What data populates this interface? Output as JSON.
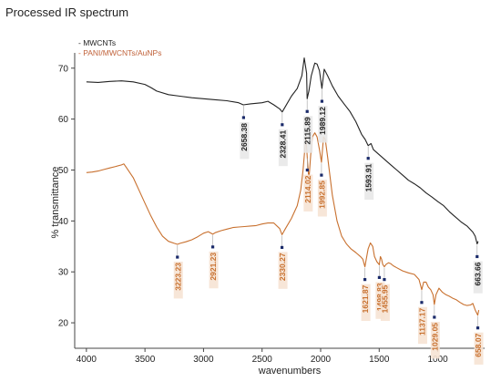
{
  "chart_data": {
    "type": "line",
    "title": "Processed IR spectrum",
    "xlabel": "wavenumbers",
    "ylabel": "% transmittance",
    "xlim": [
      4100,
      600
    ],
    "ylim": [
      15,
      73
    ],
    "x_reversed": true,
    "xticks": [
      4000,
      3500,
      3000,
      2500,
      2000,
      1500,
      1000
    ],
    "yticks": [
      20,
      30,
      40,
      50,
      60,
      70
    ],
    "legend_position": "top-left",
    "grid": false,
    "series": [
      {
        "name": "- MWCNTs",
        "color": "#222222",
        "points": [
          [
            4000,
            67.3
          ],
          [
            3900,
            67.2
          ],
          [
            3800,
            67.4
          ],
          [
            3700,
            67.5
          ],
          [
            3600,
            67.3
          ],
          [
            3500,
            66.8
          ],
          [
            3450,
            66.2
          ],
          [
            3400,
            65.5
          ],
          [
            3300,
            64.8
          ],
          [
            3200,
            64.5
          ],
          [
            3100,
            64.2
          ],
          [
            3000,
            64.0
          ],
          [
            2900,
            63.8
          ],
          [
            2800,
            63.6
          ],
          [
            2700,
            63.2
          ],
          [
            2660,
            62.8
          ],
          [
            2600,
            63.0
          ],
          [
            2500,
            63.2
          ],
          [
            2450,
            63.5
          ],
          [
            2400,
            62.8
          ],
          [
            2350,
            62.0
          ],
          [
            2328,
            61.4
          ],
          [
            2300,
            62.5
          ],
          [
            2250,
            64.5
          ],
          [
            2200,
            66.0
          ],
          [
            2160,
            68.5
          ],
          [
            2140,
            72.0
          ],
          [
            2120,
            69.0
          ],
          [
            2115,
            64.0
          ],
          [
            2100,
            65.5
          ],
          [
            2080,
            68.5
          ],
          [
            2050,
            71.0
          ],
          [
            2030,
            70.8
          ],
          [
            2010,
            69.5
          ],
          [
            1989,
            66.0
          ],
          [
            1970,
            69.8
          ],
          [
            1940,
            68.5
          ],
          [
            1900,
            66.5
          ],
          [
            1850,
            64.5
          ],
          [
            1800,
            63.0
          ],
          [
            1750,
            61.5
          ],
          [
            1700,
            59.5
          ],
          [
            1650,
            57.0
          ],
          [
            1620,
            56.0
          ],
          [
            1594,
            54.8
          ],
          [
            1570,
            55.2
          ],
          [
            1550,
            54.0
          ],
          [
            1500,
            53.0
          ],
          [
            1450,
            52.0
          ],
          [
            1400,
            51.0
          ],
          [
            1350,
            50.0
          ],
          [
            1300,
            49.0
          ],
          [
            1250,
            48.0
          ],
          [
            1200,
            47.3
          ],
          [
            1150,
            46.5
          ],
          [
            1100,
            45.5
          ],
          [
            1050,
            44.7
          ],
          [
            1000,
            43.8
          ],
          [
            950,
            43.0
          ],
          [
            900,
            41.8
          ],
          [
            850,
            40.8
          ],
          [
            800,
            39.8
          ],
          [
            750,
            39.0
          ],
          [
            700,
            37.8
          ],
          [
            680,
            37.0
          ],
          [
            664,
            35.5
          ],
          [
            655,
            36.0
          ]
        ]
      },
      {
        "name": "- PANI/MWCNTs/AuNPs",
        "color": "#c8702e",
        "points": [
          [
            4000,
            49.5
          ],
          [
            3950,
            49.6
          ],
          [
            3900,
            49.8
          ],
          [
            3850,
            50.1
          ],
          [
            3800,
            50.4
          ],
          [
            3750,
            50.7
          ],
          [
            3700,
            51.0
          ],
          [
            3680,
            51.2
          ],
          [
            3650,
            50.2
          ],
          [
            3600,
            48.5
          ],
          [
            3550,
            46.0
          ],
          [
            3500,
            43.5
          ],
          [
            3450,
            41.0
          ],
          [
            3400,
            38.8
          ],
          [
            3350,
            37.0
          ],
          [
            3300,
            36.0
          ],
          [
            3250,
            35.6
          ],
          [
            3223,
            35.4
          ],
          [
            3200,
            35.6
          ],
          [
            3150,
            35.9
          ],
          [
            3100,
            36.3
          ],
          [
            3050,
            36.9
          ],
          [
            3000,
            37.6
          ],
          [
            2960,
            37.9
          ],
          [
            2921,
            37.4
          ],
          [
            2900,
            37.7
          ],
          [
            2850,
            38.1
          ],
          [
            2800,
            38.4
          ],
          [
            2750,
            38.7
          ],
          [
            2700,
            38.8
          ],
          [
            2650,
            38.9
          ],
          [
            2600,
            39.0
          ],
          [
            2550,
            39.1
          ],
          [
            2500,
            39.4
          ],
          [
            2450,
            39.6
          ],
          [
            2400,
            39.6
          ],
          [
            2350,
            38.5
          ],
          [
            2330,
            37.3
          ],
          [
            2300,
            38.5
          ],
          [
            2250,
            40.5
          ],
          [
            2200,
            43.0
          ],
          [
            2170,
            46.0
          ],
          [
            2150,
            50.0
          ],
          [
            2135,
            54.0
          ],
          [
            2125,
            56.5
          ],
          [
            2114,
            52.5
          ],
          [
            2100,
            48.0
          ],
          [
            2085,
            53.0
          ],
          [
            2070,
            56.5
          ],
          [
            2050,
            57.3
          ],
          [
            2030,
            56.5
          ],
          [
            2010,
            54.0
          ],
          [
            1993,
            51.5
          ],
          [
            1975,
            56.5
          ],
          [
            1960,
            56.0
          ],
          [
            1940,
            52.5
          ],
          [
            1900,
            45.0
          ],
          [
            1860,
            40.0
          ],
          [
            1820,
            37.0
          ],
          [
            1780,
            35.5
          ],
          [
            1740,
            34.5
          ],
          [
            1700,
            33.8
          ],
          [
            1660,
            33.0
          ],
          [
            1640,
            32.5
          ],
          [
            1622,
            31.0
          ],
          [
            1610,
            32.5
          ],
          [
            1595,
            34.5
          ],
          [
            1575,
            35.7
          ],
          [
            1555,
            35.0
          ],
          [
            1540,
            33.0
          ],
          [
            1520,
            32.0
          ],
          [
            1499,
            31.4
          ],
          [
            1490,
            33.0
          ],
          [
            1480,
            32.5
          ],
          [
            1470,
            31.5
          ],
          [
            1456,
            31.0
          ],
          [
            1440,
            31.5
          ],
          [
            1420,
            31.8
          ],
          [
            1400,
            31.6
          ],
          [
            1380,
            31.2
          ],
          [
            1350,
            30.8
          ],
          [
            1300,
            30.2
          ],
          [
            1250,
            29.8
          ],
          [
            1200,
            29.5
          ],
          [
            1160,
            28.5
          ],
          [
            1137,
            26.5
          ],
          [
            1120,
            28.0
          ],
          [
            1100,
            28.0
          ],
          [
            1080,
            27.0
          ],
          [
            1060,
            26.5
          ],
          [
            1040,
            25.5
          ],
          [
            1029,
            23.6
          ],
          [
            1015,
            25.5
          ],
          [
            990,
            26.8
          ],
          [
            960,
            26.0
          ],
          [
            930,
            25.5
          ],
          [
            900,
            25.2
          ],
          [
            870,
            24.8
          ],
          [
            840,
            24.5
          ],
          [
            810,
            24.0
          ],
          [
            780,
            23.6
          ],
          [
            750,
            23.4
          ],
          [
            720,
            23.5
          ],
          [
            700,
            23.8
          ],
          [
            680,
            22.5
          ],
          [
            658,
            21.5
          ],
          [
            650,
            22.5
          ]
        ]
      }
    ],
    "annotations": [
      {
        "text": "2658.38",
        "x": 2658,
        "y": 62.8,
        "color": "#222222"
      },
      {
        "text": "2328.41",
        "x": 2328,
        "y": 61.4,
        "color": "#222222"
      },
      {
        "text": "2115.89",
        "x": 2115,
        "y": 64.0,
        "color": "#222222"
      },
      {
        "text": "1989.12",
        "x": 1989,
        "y": 66.0,
        "color": "#222222"
      },
      {
        "text": "1593.91",
        "x": 1594,
        "y": 54.8,
        "color": "#222222"
      },
      {
        "text": "663.66",
        "x": 664,
        "y": 35.5,
        "color": "#222222"
      },
      {
        "text": "3223.23",
        "x": 3223,
        "y": 35.4,
        "color": "#c8702e"
      },
      {
        "text": "2921.23",
        "x": 2921,
        "y": 37.4,
        "color": "#c8702e"
      },
      {
        "text": "2330.27",
        "x": 2330,
        "y": 37.3,
        "color": "#c8702e"
      },
      {
        "text": "2114.02",
        "x": 2114,
        "y": 52.5,
        "color": "#c8702e"
      },
      {
        "text": "1992.85",
        "x": 1993,
        "y": 51.5,
        "color": "#c8702e"
      },
      {
        "text": "1621.87",
        "x": 1622,
        "y": 31.0,
        "color": "#c8702e"
      },
      {
        "text": "1498.83",
        "x": 1499,
        "y": 31.4,
        "color": "#c8702e"
      },
      {
        "text": "1455.95",
        "x": 1456,
        "y": 31.0,
        "color": "#c8702e"
      },
      {
        "text": "1137.17",
        "x": 1137,
        "y": 26.5,
        "color": "#c8702e"
      },
      {
        "text": "1029.05",
        "x": 1029,
        "y": 23.6,
        "color": "#c8702e"
      },
      {
        "text": "658.07",
        "x": 658,
        "y": 21.5,
        "color": "#c8702e"
      }
    ]
  }
}
